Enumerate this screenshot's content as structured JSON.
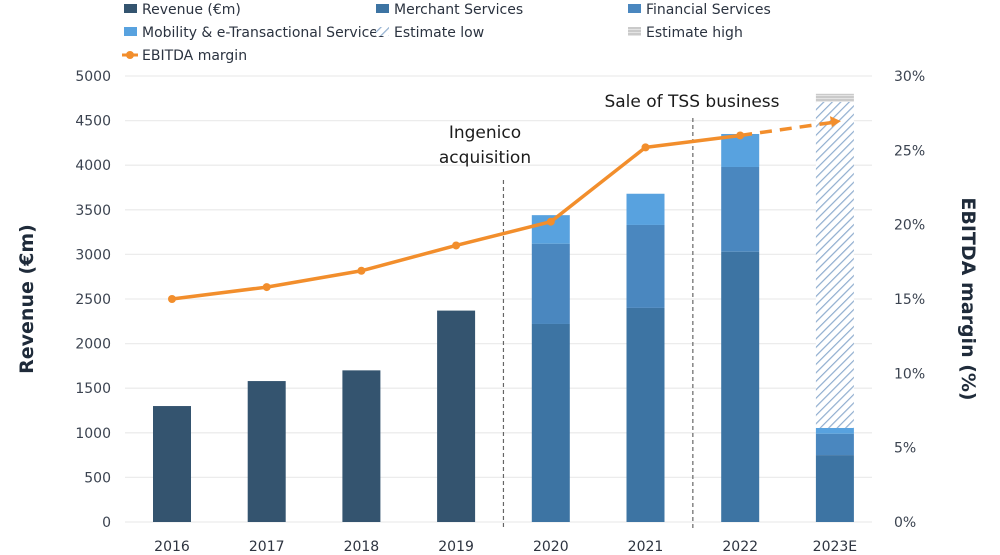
{
  "chart_data": {
    "type": "bar",
    "title": "",
    "categories": [
      "2016",
      "2017",
      "2018",
      "2019",
      "2020",
      "2021",
      "2022",
      "2023E"
    ],
    "xlabel": "",
    "ylabel": "Revenue (€m)",
    "y2label": "EBITDA margin (%)",
    "ylim": [
      0,
      5000
    ],
    "y2lim": [
      0,
      30
    ],
    "yticks": [
      "0",
      "500",
      "1000",
      "1500",
      "2000",
      "2500",
      "3000",
      "3500",
      "4000",
      "4500",
      "5000"
    ],
    "y2ticks": [
      "0%",
      "5%",
      "10%",
      "15%",
      "20%",
      "25%",
      "30%"
    ],
    "grid": true,
    "legend_position": "top",
    "series": [
      {
        "name": "Revenue (€m)",
        "kind": "bar",
        "color": "#34546f",
        "values": [
          1300,
          1580,
          1700,
          2370,
          null,
          null,
          null,
          null
        ]
      },
      {
        "name": "Merchant Services",
        "kind": "stacked-bar",
        "color": "#3d74a3",
        "values": [
          null,
          null,
          null,
          null,
          2220,
          2400,
          3030,
          750
        ]
      },
      {
        "name": "Financial Services",
        "kind": "stacked-bar",
        "color": "#4a87bf",
        "values": [
          null,
          null,
          null,
          null,
          900,
          930,
          950,
          240
        ]
      },
      {
        "name": "Mobility & e-Transactional Services",
        "kind": "stacked-bar",
        "color": "#58a2df",
        "values": [
          null,
          null,
          null,
          null,
          320,
          350,
          370,
          65
        ]
      },
      {
        "name": "Estimate low",
        "kind": "stacked-bar",
        "pattern": "diagonal-hatch",
        "color": "#9fb8d3",
        "values": [
          null,
          null,
          null,
          null,
          null,
          null,
          null,
          3655
        ]
      },
      {
        "name": "Estimate high",
        "kind": "stacked-bar",
        "pattern": "horizontal-lines",
        "color": "#bdbdbd",
        "values": [
          null,
          null,
          null,
          null,
          null,
          null,
          null,
          90
        ]
      },
      {
        "name": "EBITDA margin",
        "kind": "line",
        "axis": "right",
        "color": "#f28e2c",
        "values": [
          15.0,
          15.8,
          16.9,
          18.6,
          20.2,
          25.2,
          26.0,
          26.9
        ],
        "dashed_from_index": 6
      }
    ],
    "annotations": [
      {
        "text_lines": [
          "Ingenico",
          "acquisition"
        ],
        "divider_between": [
          "2019",
          "2020"
        ]
      },
      {
        "text_lines": [
          "Sale of TSS business"
        ],
        "divider_between": [
          "2021",
          "2022"
        ]
      }
    ]
  },
  "legend": [
    {
      "label": "Revenue (€m)",
      "swatch": "solid",
      "color": "#34546f"
    },
    {
      "label": "Merchant Services",
      "swatch": "solid",
      "color": "#3d74a3"
    },
    {
      "label": "Financial Services",
      "swatch": "solid",
      "color": "#4a87bf"
    },
    {
      "label": "Mobility & e-Transactional Services",
      "swatch": "solid",
      "color": "#58a2df"
    },
    {
      "label": "Estimate low",
      "swatch": "hatch",
      "color": "#9fb8d3"
    },
    {
      "label": "Estimate high",
      "swatch": "lines",
      "color": "#bdbdbd"
    },
    {
      "label": "EBITDA margin",
      "swatch": "line",
      "color": "#f28e2c"
    }
  ]
}
